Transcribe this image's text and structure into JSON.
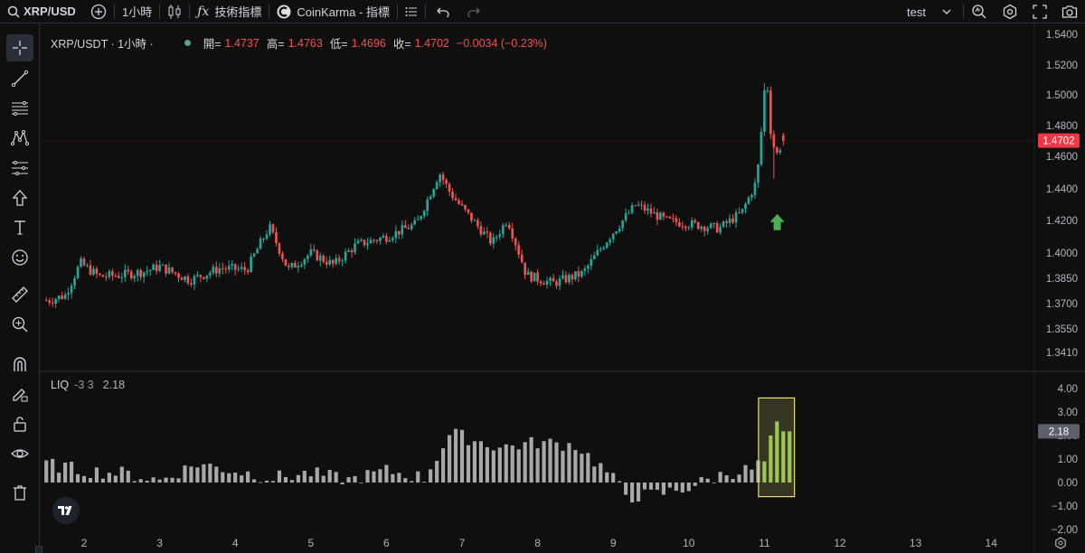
{
  "toolbar": {
    "symbol": "XRP/USDT",
    "interval": "1小時",
    "indicators_label": "技術指標",
    "coinkarma_label": "CoinKarma - 指標",
    "layout_name": "test"
  },
  "legend": {
    "symbol": "XRP/USDT",
    "interval_text": "· 1小時 ·",
    "open_label": "開=",
    "open": "1.4737",
    "high_label": "高=",
    "high": "1.4763",
    "low_label": "低=",
    "low": "1.4696",
    "close_label": "收=",
    "close": "1.4702",
    "change": "−0.0034 (−0.23%)"
  },
  "indicator": {
    "name": "LIQ",
    "params": "-3 3",
    "value": "2.18"
  },
  "colors": {
    "up": "#26a69a",
    "down": "#ef5350",
    "price_badge": "#f23645",
    "highlight_box": "#e8e07a",
    "highlight_bars": "#8bc34a",
    "bars": "#a8a8a8",
    "arrow": "#4caf50"
  },
  "chart_data": [
    {
      "type": "candlestick",
      "title": "XRP/USDT · 1小時",
      "x_ticks": [
        "2",
        "3",
        "4",
        "5",
        "6",
        "7",
        "8",
        "9",
        "10",
        "11",
        "12",
        "13",
        "14"
      ],
      "y_ticks": [
        "1.5400",
        "1.5200",
        "1.5000",
        "1.4800",
        "1.4600",
        "1.4400",
        "1.4200",
        "1.4000",
        "1.3850",
        "1.3700",
        "1.3550",
        "1.3410"
      ],
      "ylim": [
        1.335,
        1.542
      ],
      "last_price": "1.4702",
      "annotations": [
        "up-arrow below last candles"
      ],
      "series_close_keypoints": [
        {
          "x": 1.55,
          "close": 1.372
        },
        {
          "x": 1.75,
          "close": 1.375
        },
        {
          "x": 1.95,
          "close": 1.394
        },
        {
          "x": 2.2,
          "close": 1.386
        },
        {
          "x": 2.5,
          "close": 1.387
        },
        {
          "x": 2.8,
          "close": 1.389
        },
        {
          "x": 3.0,
          "close": 1.392
        },
        {
          "x": 3.4,
          "close": 1.384
        },
        {
          "x": 3.8,
          "close": 1.391
        },
        {
          "x": 4.15,
          "close": 1.39
        },
        {
          "x": 4.45,
          "close": 1.416
        },
        {
          "x": 4.7,
          "close": 1.39
        },
        {
          "x": 5.0,
          "close": 1.4
        },
        {
          "x": 5.3,
          "close": 1.393
        },
        {
          "x": 5.6,
          "close": 1.405
        },
        {
          "x": 6.0,
          "close": 1.41
        },
        {
          "x": 6.4,
          "close": 1.418
        },
        {
          "x": 6.7,
          "close": 1.45
        },
        {
          "x": 6.85,
          "close": 1.437
        },
        {
          "x": 7.0,
          "close": 1.428
        },
        {
          "x": 7.4,
          "close": 1.406
        },
        {
          "x": 7.6,
          "close": 1.421
        },
        {
          "x": 7.85,
          "close": 1.387
        },
        {
          "x": 8.2,
          "close": 1.382
        },
        {
          "x": 8.6,
          "close": 1.388
        },
        {
          "x": 8.95,
          "close": 1.41
        },
        {
          "x": 9.3,
          "close": 1.43
        },
        {
          "x": 9.7,
          "close": 1.42
        },
        {
          "x": 10.0,
          "close": 1.418
        },
        {
          "x": 10.4,
          "close": 1.415
        },
        {
          "x": 10.7,
          "close": 1.425
        },
        {
          "x": 10.9,
          "close": 1.445
        },
        {
          "x": 11.0,
          "close": 1.498
        },
        {
          "x": 11.15,
          "close": 1.46
        },
        {
          "x": 11.25,
          "close": 1.4702
        }
      ]
    },
    {
      "type": "bar",
      "title": "LIQ -3 3",
      "y_ticks": [
        "4.00",
        "3.00",
        "2.00",
        "1.00",
        "0.00",
        "-1.00",
        "-2.00"
      ],
      "ylim": [
        -2.0,
        4.0
      ],
      "last_value": "2.18",
      "highlighted_range_x": [
        10.97,
        11.35
      ],
      "values_keypoints": [
        {
          "x": 1.5,
          "v": 0.8
        },
        {
          "x": 2.0,
          "v": 0.5
        },
        {
          "x": 2.5,
          "v": 0.4
        },
        {
          "x": 3.0,
          "v": 0.1
        },
        {
          "x": 3.5,
          "v": 0.8
        },
        {
          "x": 4.0,
          "v": 0.5
        },
        {
          "x": 4.5,
          "v": 0.2
        },
        {
          "x": 5.0,
          "v": 0.4
        },
        {
          "x": 5.5,
          "v": 0.1
        },
        {
          "x": 6.0,
          "v": 0.5
        },
        {
          "x": 6.5,
          "v": 0.2
        },
        {
          "x": 6.85,
          "v": 2.1
        },
        {
          "x": 7.5,
          "v": 1.5
        },
        {
          "x": 8.0,
          "v": 1.7
        },
        {
          "x": 8.5,
          "v": 1.6
        },
        {
          "x": 8.9,
          "v": 0.5
        },
        {
          "x": 9.2,
          "v": -0.6
        },
        {
          "x": 9.6,
          "v": -0.5
        },
        {
          "x": 10.0,
          "v": -0.2
        },
        {
          "x": 10.5,
          "v": 0.4
        },
        {
          "x": 10.9,
          "v": 0.6
        },
        {
          "x": 11.0,
          "v": 1.5
        },
        {
          "x": 11.15,
          "v": 3.2
        },
        {
          "x": 11.3,
          "v": 2.18
        }
      ]
    }
  ]
}
